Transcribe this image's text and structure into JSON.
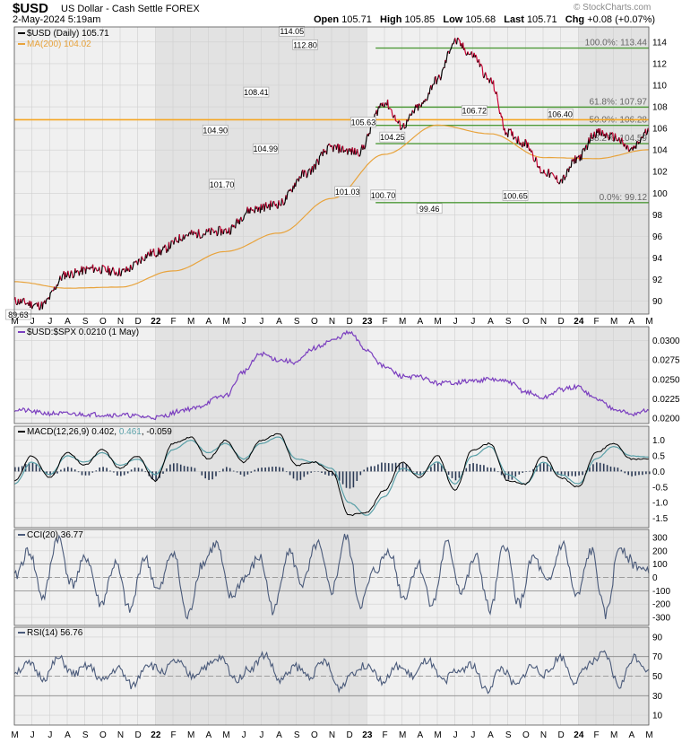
{
  "header": {
    "symbol": "$USD",
    "description": "US Dollar - Cash Settle",
    "exchange": "FOREX",
    "datetime": "2-May-2024 5:19am",
    "brand": "© StockCharts.com",
    "open_label": "Open",
    "open": "105.71",
    "high_label": "High",
    "high": "105.85",
    "low_label": "Low",
    "low": "105.68",
    "last_label": "Last",
    "last": "105.71",
    "chg_label": "Chg",
    "chg": "+0.08 (+0.07%)"
  },
  "x_axis": {
    "labels": [
      "M",
      "J",
      "J",
      "A",
      "S",
      "O",
      "N",
      "D",
      "22",
      "F",
      "M",
      "A",
      "M",
      "J",
      "J",
      "A",
      "S",
      "O",
      "N",
      "D",
      "23",
      "F",
      "M",
      "A",
      "M",
      "J",
      "J",
      "A",
      "S",
      "O",
      "N",
      "D",
      "24",
      "F",
      "M",
      "A",
      "M"
    ],
    "bold": [
      "22",
      "23",
      "24"
    ]
  },
  "chart_data": [
    {
      "type": "line",
      "title": "$USD (Daily) 105.71",
      "series": [
        {
          "name": "$USD (Daily) 105.71",
          "color": "#000000",
          "down_color": "#cc0033",
          "x": [
            0,
            1.5,
            3,
            4.5,
            6,
            8,
            10,
            12,
            13.5,
            15,
            16.5,
            18,
            19.5,
            21,
            22,
            23,
            24,
            25,
            26,
            27,
            28,
            29,
            30,
            31,
            32,
            33,
            34,
            35,
            36
          ],
          "values": [
            90.0,
            89.6,
            92.5,
            93.0,
            92.7,
            94.5,
            96.2,
            96.5,
            98.5,
            99.0,
            101.8,
            104.2,
            103.8,
            108.4,
            106.2,
            108.0,
            110.5,
            114.05,
            112.8,
            110.4,
            105.6,
            104.6,
            102.0,
            101.2,
            103.3,
            105.6,
            105.2,
            104.0,
            105.71
          ]
        },
        {
          "name": "MA(200) 104.02",
          "color": "#e8a33c",
          "x": [
            0,
            3,
            6,
            9,
            12,
            15,
            18,
            21,
            24,
            27,
            30,
            33,
            36
          ],
          "values": [
            91.8,
            91.2,
            91.3,
            92.8,
            94.6,
            96.3,
            99.5,
            103.6,
            106.3,
            105.5,
            103.3,
            103.2,
            104.02
          ]
        }
      ],
      "annotations": [
        {
          "x": 0.3,
          "value": 89.63,
          "label": "89.63"
        },
        {
          "x": 15.7,
          "value": 101.7,
          "label": "101.70"
        },
        {
          "x": 15.2,
          "value": 104.9,
          "label": "104.90"
        },
        {
          "x": 18.3,
          "value": 108.41,
          "label": "108.41"
        },
        {
          "x": 19.0,
          "value": 104.99,
          "label": "104.99"
        },
        {
          "x": 21.0,
          "value": 114.05,
          "label": "114.05"
        },
        {
          "x": 22.0,
          "value": 112.8,
          "label": "112.80"
        },
        {
          "x": 25.2,
          "value": 101.03,
          "label": "101.03"
        },
        {
          "x": 26.4,
          "value": 105.63,
          "label": "105.63"
        },
        {
          "x": 27.9,
          "value": 100.7,
          "label": "100.70"
        },
        {
          "x": 28.6,
          "value": 104.25,
          "label": "104.25"
        },
        {
          "x": 31.4,
          "value": 99.46,
          "label": "99.46"
        },
        {
          "x": 34.8,
          "value": 106.72,
          "label": "106.72"
        },
        {
          "x": 37.9,
          "value": 100.65,
          "label": "100.65"
        },
        {
          "x": 41.3,
          "value": 106.4,
          "label": "106.40"
        }
      ],
      "fib_levels": [
        {
          "label": "100.0%: 113.44",
          "value": 113.44
        },
        {
          "label": "61.8%: 107.97",
          "value": 107.97
        },
        {
          "label": "50.0%: 106.28",
          "value": 106.28
        },
        {
          "label": "38.2%: 104.59",
          "value": 104.59
        },
        {
          "label": "0.0%: 99.12",
          "value": 99.12
        }
      ],
      "horizontal_line": {
        "value": 106.8,
        "color": "#f5a623"
      },
      "y_ticks": [
        90,
        92,
        94,
        96,
        98,
        100,
        102,
        104,
        106,
        108,
        110,
        112,
        114
      ],
      "ylim": [
        88.8,
        115.4
      ]
    },
    {
      "type": "line",
      "title": "$USD:$SPX 0.0210 (1 May)",
      "series": [
        {
          "name": "$USD:$SPX 0.0210 (1 May)",
          "color": "#7b3fbf",
          "x": [
            0,
            2,
            4,
            6,
            8,
            10,
            12,
            13,
            14,
            15,
            16,
            17,
            18,
            19,
            20,
            21,
            22,
            23,
            24,
            25,
            26,
            27,
            28,
            29,
            30,
            31,
            32,
            33,
            34,
            35,
            36
          ],
          "values": [
            0.0211,
            0.0206,
            0.0205,
            0.0204,
            0.0201,
            0.0212,
            0.0229,
            0.026,
            0.0283,
            0.0275,
            0.0272,
            0.029,
            0.03,
            0.031,
            0.0288,
            0.0266,
            0.0254,
            0.0253,
            0.0245,
            0.0246,
            0.0248,
            0.025,
            0.0247,
            0.0234,
            0.0226,
            0.0237,
            0.024,
            0.0225,
            0.0213,
            0.0205,
            0.021
          ]
        }
      ],
      "y_ticks": [
        0.02,
        0.0225,
        0.025,
        0.0275,
        0.03
      ],
      "y_tick_labels": [
        "0.0200",
        "0.0225",
        "0.0250",
        "0.0275",
        "0.0300"
      ],
      "ylim": [
        0.0193,
        0.0318
      ]
    },
    {
      "type": "line",
      "title": "MACD(12,26,9) 0.402, 0.461, -0.059",
      "title_parts": [
        "MACD(12,26,9) 0.402, ",
        "0.461",
        ", -0.059"
      ],
      "series": [
        {
          "name": "MACD",
          "color": "#000000",
          "values": [
            -0.3,
            0.5,
            -0.2,
            0.6,
            0.2,
            0.7,
            0.1,
            0.5,
            -0.3,
            0.9,
            1.1,
            0.4,
            1.0,
            0.3,
            1.0,
            1.2,
            0.2,
            0.3,
            0.0,
            -1.4,
            -1.3,
            -0.6,
            0.3,
            -0.2,
            0.5,
            -0.6,
            0.7,
            0.9,
            -0.3,
            -0.4,
            0.5,
            -0.2,
            -0.5,
            0.6,
            0.9,
            0.4,
            0.4
          ]
        },
        {
          "name": "Signal",
          "color": "#5aa0a8",
          "values": [
            -0.4,
            0.3,
            -0.1,
            0.5,
            0.3,
            0.6,
            0.2,
            0.4,
            -0.1,
            0.7,
            1.0,
            0.6,
            0.9,
            0.4,
            0.9,
            1.1,
            0.4,
            0.3,
            0.1,
            -1.0,
            -1.4,
            -0.8,
            0.1,
            -0.1,
            0.3,
            -0.4,
            0.5,
            0.8,
            -0.1,
            -0.4,
            0.3,
            -0.1,
            -0.4,
            0.4,
            0.8,
            0.5,
            0.46
          ]
        }
      ],
      "histogram_color": "#2b3a55",
      "y_ticks": [
        -1.5,
        -1.0,
        -0.5,
        0.0,
        0.5,
        1.0
      ],
      "y_tick_labels": [
        "-1.5",
        "-1.0",
        "-0.5",
        "0.0",
        "0.5",
        "1.0"
      ],
      "ylim": [
        -1.8,
        1.45
      ]
    },
    {
      "type": "line",
      "title": "CCI(20) 36.77",
      "series": [
        {
          "name": "CCI(20) 36.77",
          "color": "#4a5a7a",
          "fill_color": "#6a7a96",
          "values": [
            0,
            200,
            -150,
            300,
            -50,
            150,
            -200,
            100,
            -250,
            150,
            -100,
            200,
            -300,
            100,
            250,
            -150,
            0,
            150,
            -250,
            200,
            -50,
            250,
            -100,
            300,
            -200,
            50,
            200,
            -150,
            100,
            -200,
            250,
            -100,
            150,
            -250,
            250,
            -200,
            150,
            -50,
            250,
            -150,
            200,
            -280,
            240,
            100,
            30
          ]
        }
      ],
      "y_ticks": [
        -300,
        -200,
        -100,
        0,
        100,
        200,
        300
      ],
      "y_tick_labels": [
        "-300",
        "-200",
        "-100",
        "0",
        "100",
        "200",
        "300"
      ],
      "ylim": [
        -360,
        360
      ],
      "guide_lines": [
        100,
        -100
      ]
    },
    {
      "type": "line",
      "title": "RSI(14) 56.76",
      "series": [
        {
          "name": "RSI(14) 56.76",
          "color": "#4a5a7a",
          "values": [
            55,
            62,
            48,
            68,
            52,
            60,
            45,
            58,
            40,
            63,
            55,
            65,
            50,
            60,
            68,
            47,
            58,
            72,
            45,
            60,
            50,
            65,
            38,
            55,
            62,
            45,
            60,
            50,
            66,
            45,
            55,
            62,
            35,
            58,
            40,
            60,
            52,
            70,
            45,
            63,
            72,
            40,
            70,
            56.76
          ]
        }
      ],
      "y_ticks": [
        10,
        30,
        50,
        70,
        90
      ],
      "y_tick_labels": [
        "10",
        "30",
        "50",
        "70",
        "90"
      ],
      "ylim": [
        0,
        100
      ],
      "guide_lines": [
        70,
        50,
        30
      ]
    }
  ]
}
